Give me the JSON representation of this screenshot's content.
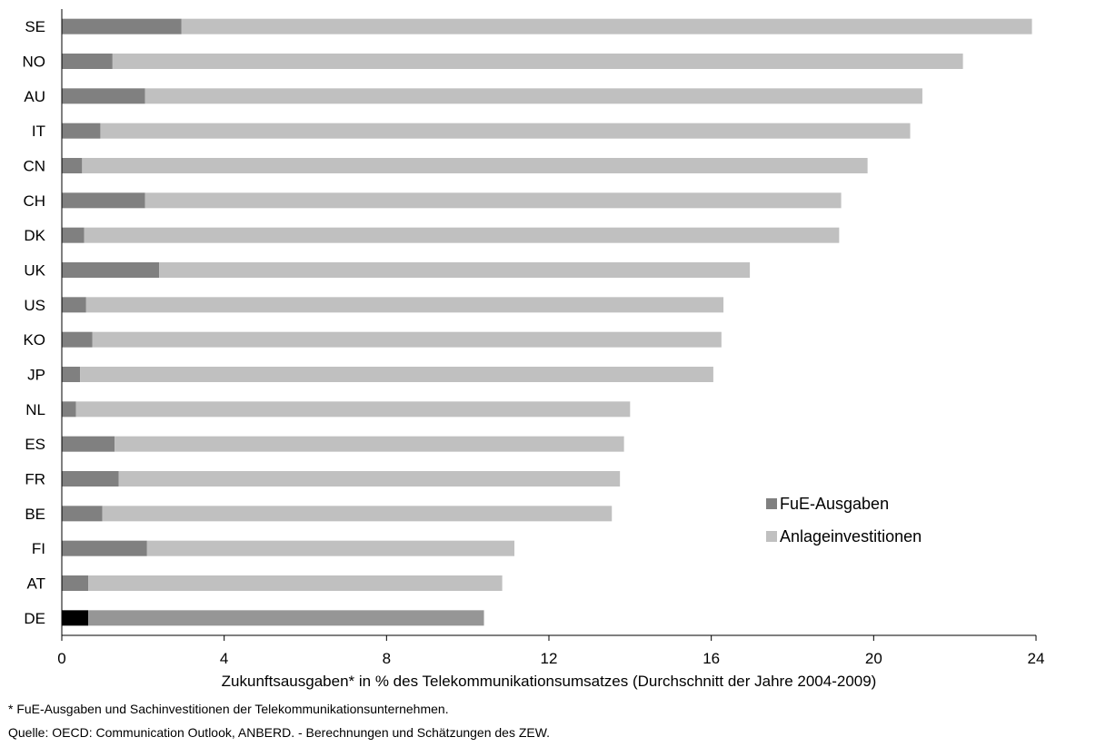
{
  "chart_data": {
    "type": "bar",
    "stacked": true,
    "orientation": "horizontal",
    "categories": [
      "SE",
      "NO",
      "AU",
      "IT",
      "CN",
      "CH",
      "DK",
      "UK",
      "US",
      "KO",
      "JP",
      "NL",
      "ES",
      "FR",
      "BE",
      "FI",
      "AT",
      "DE"
    ],
    "series": [
      {
        "name": "FuE-Ausgaben",
        "values": [
          2.95,
          1.25,
          2.05,
          0.95,
          0.5,
          2.05,
          0.55,
          2.4,
          0.6,
          0.75,
          0.45,
          0.35,
          1.3,
          1.4,
          1.0,
          2.1,
          0.65,
          0.65
        ]
      },
      {
        "name": "Anlageinvestitionen",
        "values": [
          20.95,
          20.95,
          19.15,
          19.95,
          19.35,
          17.15,
          18.6,
          14.55,
          15.7,
          15.5,
          15.6,
          13.65,
          12.55,
          12.35,
          12.55,
          9.05,
          10.2,
          9.75
        ]
      }
    ],
    "xlabel": "Zukunftsausgaben* in % des Telekommunikationsumsatzes (Durchschnitt der Jahre 2004-2009)",
    "xlim": [
      0,
      24
    ],
    "xticks": [
      "0",
      "4",
      "8",
      "12",
      "16",
      "20",
      "24"
    ],
    "grid": false,
    "legend": "center-right",
    "colors": {
      "fue": "#808080",
      "anlage": "#c0c0c0",
      "highlight_fue": "#000000",
      "highlight_anlage": "#969696"
    },
    "highlight_category": "DE"
  },
  "footnotes": {
    "note": "* FuE-Ausgaben und Sachinvestitionen der Telekommunikationsunternehmen.",
    "source": "Quelle: OECD: Communication Outlook, ANBERD. - Berechnungen und Schätzungen des ZEW."
  }
}
